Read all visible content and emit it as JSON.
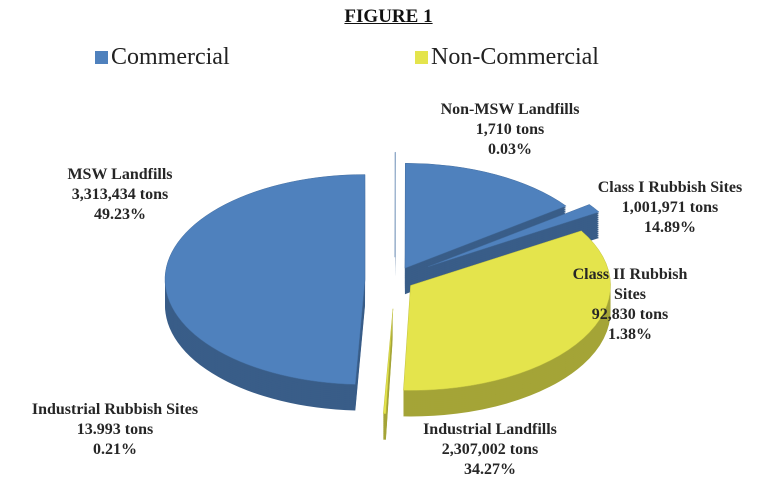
{
  "chart_data": {
    "type": "pie",
    "title": "FIGURE 1",
    "categories": [
      "Non-MSW Landfills",
      "Class I Rubbish Sites",
      "Class II Rubbish Sites",
      "Industrial Landfills",
      "Industrial Rubbish Sites",
      "MSW Landfills"
    ],
    "values": [
      1710,
      1001971,
      92830,
      2307002,
      13993,
      3313434
    ],
    "value_labels": [
      "1,710 tons",
      "1,001,971 tons",
      "92,830 tons",
      "2,307,002 tons",
      "13.993 tons",
      "3,313,434 tons"
    ],
    "percents": [
      0.03,
      14.89,
      1.38,
      34.27,
      0.21,
      49.23
    ],
    "percent_labels": [
      "0.03%",
      "14.89%",
      "1.38%",
      "34.27%",
      "0.21%",
      "49.23%"
    ],
    "series": [
      {
        "name": "Commercial",
        "color": "#4f81bd"
      },
      {
        "name": "Non-Commercial",
        "color": "#e4e44c"
      }
    ],
    "slice_series": [
      0,
      0,
      0,
      1,
      1,
      0
    ],
    "legend": "top"
  }
}
